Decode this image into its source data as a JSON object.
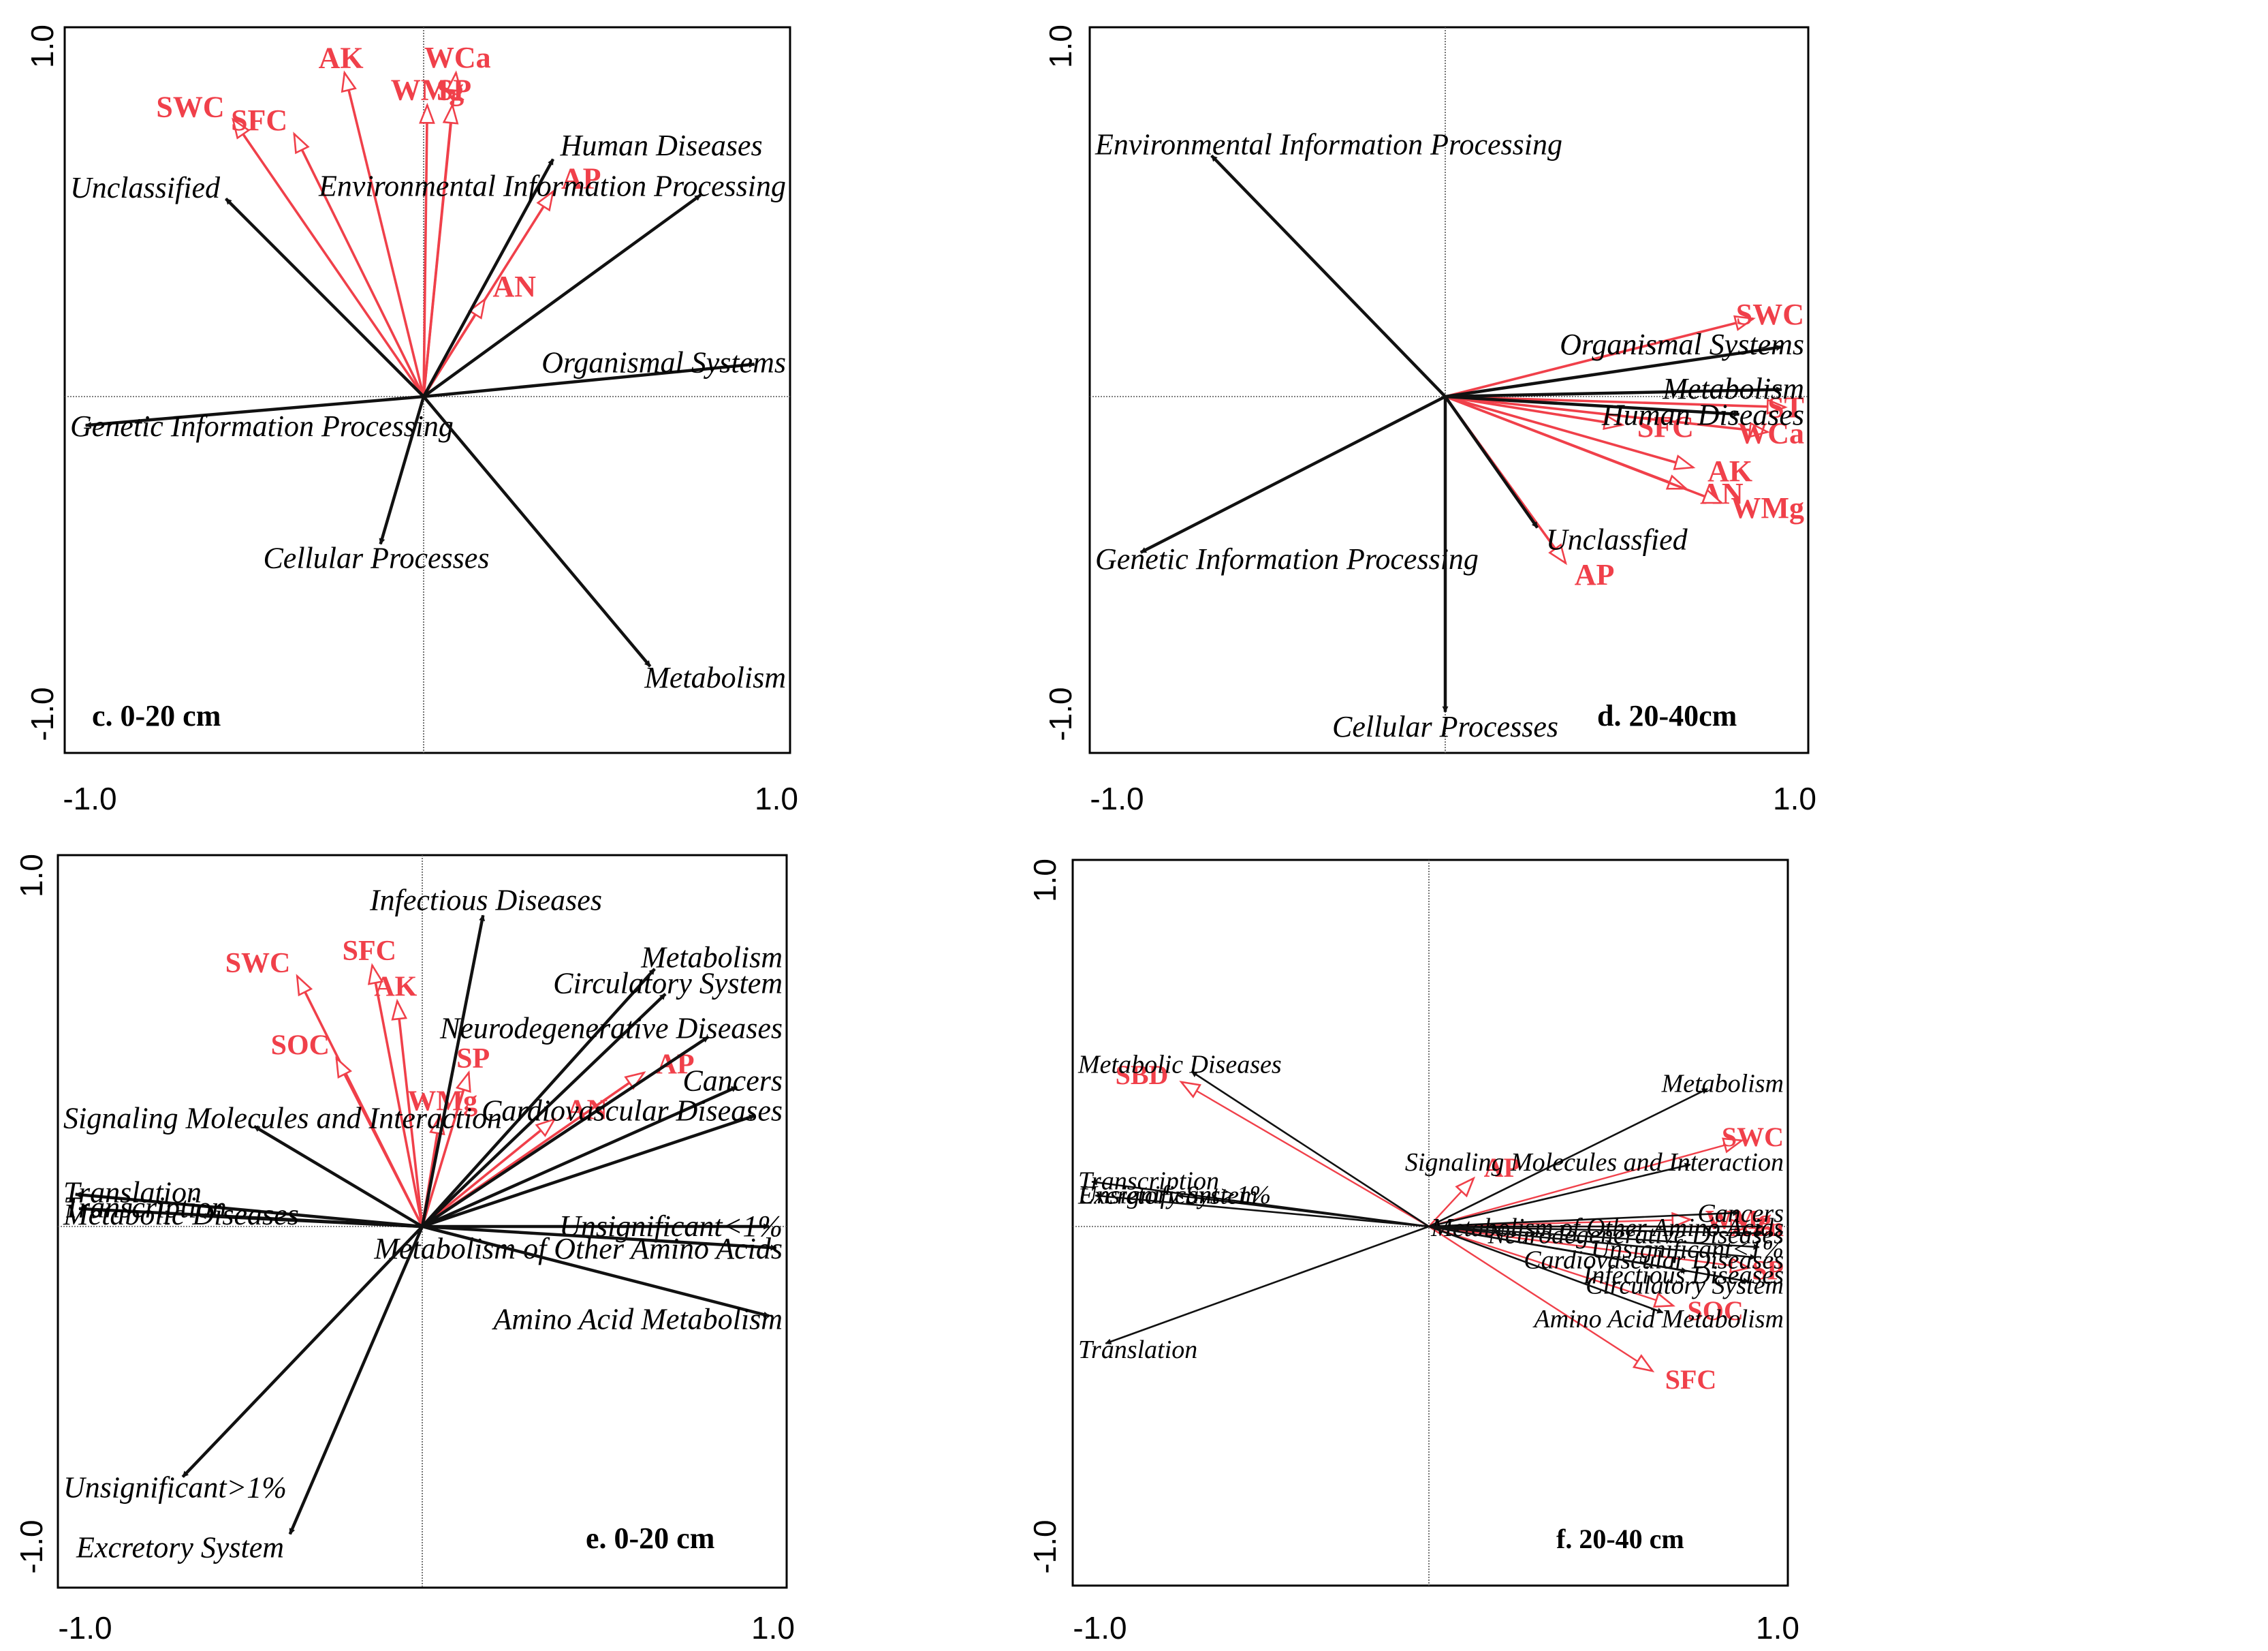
{
  "colors": {
    "variable": "#111111",
    "environment": "#f0404a",
    "frame": "#000000",
    "axis": "#555555"
  },
  "chart_data": [
    {
      "type": "biplot",
      "panel_label": "c. 0-20 cm",
      "xlim": [
        -1.0,
        1.0
      ],
      "ylim": [
        -1.0,
        1.0
      ],
      "x_tick_labels": [
        "-1.0",
        "1.0"
      ],
      "y_tick_labels": [
        "1.0",
        "-1.0"
      ],
      "variables": [
        {
          "name": "Unclassified",
          "x": -0.55,
          "y": 0.55
        },
        {
          "name": "Human Diseases",
          "x": 0.36,
          "y": 0.66
        },
        {
          "name": "Environmental Information Processing",
          "x": 0.77,
          "y": 0.56
        },
        {
          "name": "Organismal Systems",
          "x": 0.92,
          "y": 0.09
        },
        {
          "name": "Genetic Information Processing",
          "x": -0.94,
          "y": -0.08
        },
        {
          "name": "Cellular Processes",
          "x": -0.12,
          "y": -0.41
        },
        {
          "name": "Metabolism",
          "x": 0.63,
          "y": -0.75
        }
      ],
      "environment": [
        {
          "name": "SWC",
          "x": -0.53,
          "y": 0.77
        },
        {
          "name": "SFC",
          "x": -0.36,
          "y": 0.73
        },
        {
          "name": "AK",
          "x": -0.22,
          "y": 0.9
        },
        {
          "name": "WMg",
          "x": 0.01,
          "y": 0.81
        },
        {
          "name": "WCa",
          "x": 0.09,
          "y": 0.9
        },
        {
          "name": "SP",
          "x": 0.08,
          "y": 0.81
        },
        {
          "name": "AP",
          "x": 0.36,
          "y": 0.57
        },
        {
          "name": "AN",
          "x": 0.17,
          "y": 0.27
        }
      ]
    },
    {
      "type": "biplot",
      "panel_label": "d. 20-40cm",
      "xlim": [
        -1.0,
        1.0
      ],
      "ylim": [
        -1.0,
        1.0
      ],
      "x_tick_labels": [
        "-1.0",
        "1.0"
      ],
      "y_tick_labels": [
        "1.0",
        "-1.0"
      ],
      "variables": [
        {
          "name": "Environmental Information Processing",
          "x": -0.66,
          "y": 0.68
        },
        {
          "name": "Organismal Systems",
          "x": 0.95,
          "y": 0.14
        },
        {
          "name": "Metabolism",
          "x": 0.95,
          "y": 0.02
        },
        {
          "name": "Human Diseases",
          "x": 0.83,
          "y": -0.05
        },
        {
          "name": "Unclassfied",
          "x": 0.26,
          "y": -0.37
        },
        {
          "name": "Genetic Information Processing",
          "x": -0.86,
          "y": -0.44
        },
        {
          "name": "Cellular Processes",
          "x": 0.0,
          "y": -0.89
        }
      ],
      "environment": [
        {
          "name": "SWC",
          "x": 0.87,
          "y": 0.22
        },
        {
          "name": "ST",
          "x": 0.96,
          "y": -0.03
        },
        {
          "name": "WCa",
          "x": 0.91,
          "y": -0.1
        },
        {
          "name": "SFC",
          "x": 0.5,
          "y": -0.08
        },
        {
          "name": "AK",
          "x": 0.7,
          "y": -0.2
        },
        {
          "name": "AN",
          "x": 0.68,
          "y": -0.26
        },
        {
          "name": "WMg",
          "x": 0.78,
          "y": -0.3
        },
        {
          "name": "AP",
          "x": 0.34,
          "y": -0.47
        }
      ]
    },
    {
      "type": "biplot",
      "panel_label": "e. 0-20 cm",
      "xlim": [
        -1.0,
        1.0
      ],
      "ylim": [
        -1.0,
        1.0
      ],
      "x_tick_labels": [
        "-1.0",
        "1.0"
      ],
      "y_tick_labels": [
        "1.0",
        "-1.0"
      ],
      "variables": [
        {
          "name": "Infectious Diseases",
          "x": 0.17,
          "y": 0.87
        },
        {
          "name": "Metabolism",
          "x": 0.65,
          "y": 0.72
        },
        {
          "name": "Circulatory System",
          "x": 0.68,
          "y": 0.65
        },
        {
          "name": "Neurodegenerative Diseases",
          "x": 0.8,
          "y": 0.53
        },
        {
          "name": "Cancers",
          "x": 0.88,
          "y": 0.39
        },
        {
          "name": "Cardiovascular Diseases",
          "x": 0.93,
          "y": 0.31
        },
        {
          "name": "Signaling Molecules and Interaction",
          "x": -0.47,
          "y": 0.28
        },
        {
          "name": "Translation",
          "x": -0.97,
          "y": 0.09
        },
        {
          "name": "Transcription",
          "x": -0.96,
          "y": 0.05
        },
        {
          "name": "Metabolic Diseases",
          "x": -0.62,
          "y": 0.03
        },
        {
          "name": "Unsignificant<1%",
          "x": 0.97,
          "y": 0.0
        },
        {
          "name": "Metabolism of Other Amino Acids",
          "x": 0.99,
          "y": -0.06
        },
        {
          "name": "Amino Acid Metabolism",
          "x": 0.97,
          "y": -0.25
        },
        {
          "name": "Unsignificant>1%",
          "x": -0.67,
          "y": -0.7
        },
        {
          "name": "Excretory System",
          "x": -0.37,
          "y": -0.86
        }
      ],
      "environment": [
        {
          "name": "SWC",
          "x": -0.35,
          "y": 0.7
        },
        {
          "name": "SFC",
          "x": -0.14,
          "y": 0.73
        },
        {
          "name": "AK",
          "x": -0.07,
          "y": 0.63
        },
        {
          "name": "SOC",
          "x": -0.24,
          "y": 0.47
        },
        {
          "name": "SP",
          "x": 0.13,
          "y": 0.43
        },
        {
          "name": "WMg",
          "x": 0.05,
          "y": 0.31
        },
        {
          "name": "AP",
          "x": 0.62,
          "y": 0.43
        },
        {
          "name": "AN",
          "x": 0.37,
          "y": 0.3
        }
      ]
    },
    {
      "type": "biplot",
      "panel_label": "f. 20-40 cm",
      "xlim": [
        -1.0,
        1.0
      ],
      "ylim": [
        -1.0,
        1.0
      ],
      "x_tick_labels": [
        "-1.0",
        "1.0"
      ],
      "y_tick_labels": [
        "1.0",
        "-1.0"
      ],
      "variables": [
        {
          "name": "Metabolic Diseases",
          "x": -0.69,
          "y": 0.45
        },
        {
          "name": "Transcription",
          "x": -0.98,
          "y": 0.13
        },
        {
          "name": "Unsignificant>1%",
          "x": -0.73,
          "y": 0.09
        },
        {
          "name": "Excretory System",
          "x": -0.97,
          "y": 0.09
        },
        {
          "name": "Translation",
          "x": -0.94,
          "y": -0.34
        },
        {
          "name": "Metabolism",
          "x": 0.81,
          "y": 0.4
        },
        {
          "name": "Signaling Molecules and Interaction",
          "x": 0.76,
          "y": 0.18
        },
        {
          "name": "Cancers",
          "x": 0.9,
          "y": 0.04
        },
        {
          "name": "Metabolism of Other Amino Acids",
          "x": 0.97,
          "y": 0.0
        },
        {
          "name": "Neurodegenerative Diseases",
          "x": 0.97,
          "y": -0.02
        },
        {
          "name": "Unsignificant<1%",
          "x": 0.96,
          "y": -0.06
        },
        {
          "name": "Cardiovascular Diseases",
          "x": 0.95,
          "y": -0.09
        },
        {
          "name": "Circulatory System",
          "x": 0.93,
          "y": -0.16
        },
        {
          "name": "Infectious Diseases",
          "x": 0.75,
          "y": -0.13
        },
        {
          "name": "Amino Acid Metabolism",
          "x": 0.68,
          "y": -0.25
        }
      ],
      "environment": [
        {
          "name": "SBD",
          "x": -0.72,
          "y": 0.42
        },
        {
          "name": "AP",
          "x": 0.13,
          "y": 0.14
        },
        {
          "name": "SWC",
          "x": 0.91,
          "y": 0.25
        },
        {
          "name": "WMg",
          "x": 0.76,
          "y": 0.02
        },
        {
          "name": "AZn",
          "x": 0.93,
          "y": 0.0
        },
        {
          "name": "SP",
          "x": 0.93,
          "y": -0.12
        },
        {
          "name": "SOC",
          "x": 0.71,
          "y": -0.23
        },
        {
          "name": "SFC",
          "x": 0.65,
          "y": -0.42
        }
      ]
    }
  ]
}
